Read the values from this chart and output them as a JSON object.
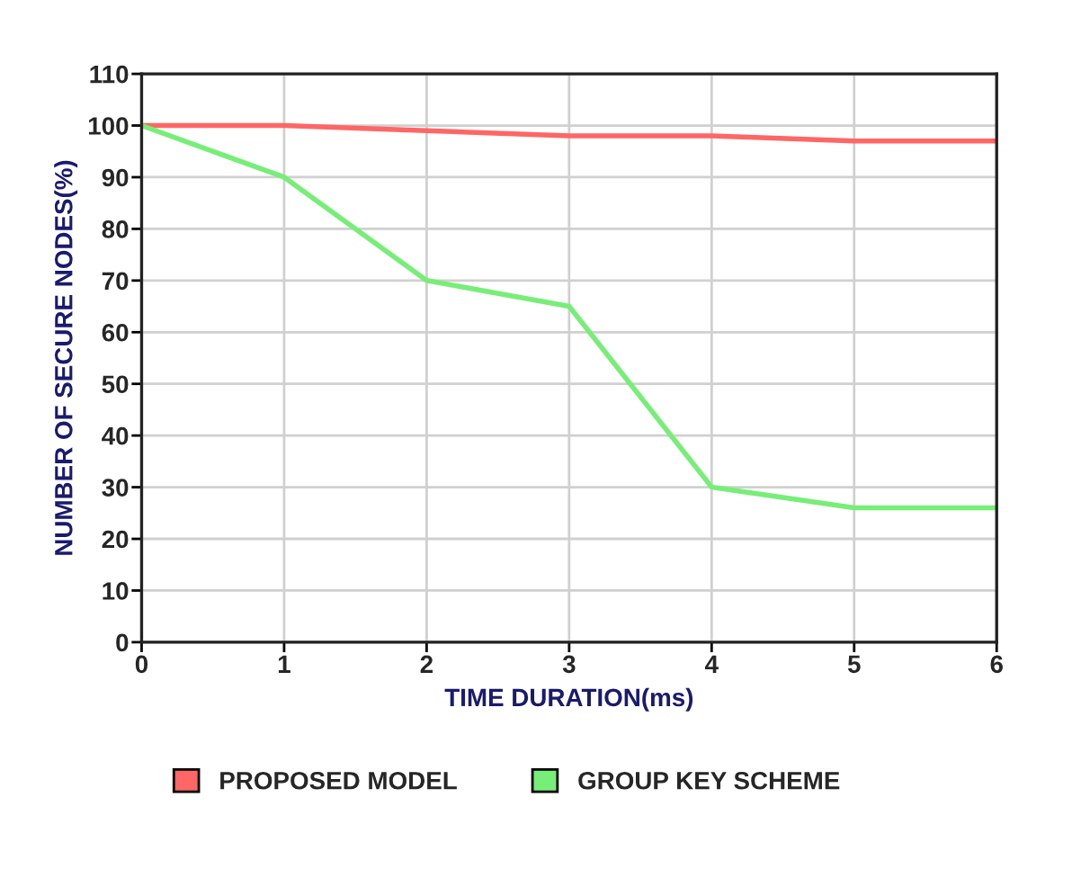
{
  "chart_data": {
    "type": "line",
    "xlabel": "TIME DURATION(ms)",
    "ylabel": "NUMBER OF SECURE NODES(%)",
    "x": [
      0,
      1,
      2,
      3,
      4,
      5,
      6
    ],
    "series": [
      {
        "name": "PROPOSED MODEL",
        "color": "#ff6666",
        "values": [
          100,
          100,
          99,
          98,
          98,
          97,
          97
        ]
      },
      {
        "name": "GROUP KEY SCHEME",
        "color": "#77ee77",
        "values": [
          100,
          90,
          70,
          65,
          30,
          26,
          26
        ]
      }
    ],
    "xlim": [
      0,
      6
    ],
    "xticks": [
      0,
      1,
      2,
      3,
      4,
      5,
      6
    ],
    "ylim": [
      0,
      110
    ],
    "yticks": [
      0,
      10,
      20,
      30,
      40,
      50,
      60,
      70,
      80,
      90,
      100,
      110
    ],
    "grid": true,
    "legend": "bottom",
    "marker": "none",
    "line_style": "solid"
  }
}
